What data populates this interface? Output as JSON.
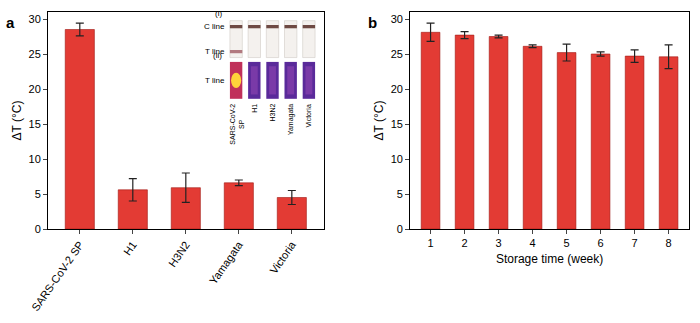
{
  "chart_data": [
    {
      "type": "bar",
      "panel_label": "a",
      "y_label": "ΔT (°C)",
      "categories": [
        "SARS-CoV-2 SP",
        "H1",
        "H3N2",
        "Yamagata",
        "Victoria"
      ],
      "values": [
        28.5,
        5.6,
        5.9,
        6.6,
        4.5
      ],
      "errors": [
        0.9,
        1.6,
        2.1,
        0.4,
        1.0
      ],
      "color": "#e33b34",
      "ylim": [
        0,
        31
      ],
      "yticks": [
        0,
        5,
        10,
        15,
        20,
        25,
        30
      ],
      "grid": false,
      "annotations": [
        {
          "text": "(i)"
        },
        {
          "text": "C line"
        },
        {
          "text": "T line"
        },
        {
          "text": "(ii)"
        },
        {
          "text": "T line"
        }
      ]
    },
    {
      "type": "bar",
      "panel_label": "b",
      "x_label": "Storage time (week)",
      "y_label": "ΔT (°C)",
      "x": [
        1,
        2,
        3,
        4,
        5,
        6,
        7,
        8
      ],
      "values": [
        28.1,
        27.7,
        27.5,
        26.1,
        25.2,
        25.0,
        24.7,
        24.6
      ],
      "errors": [
        1.3,
        0.5,
        0.2,
        0.2,
        1.2,
        0.3,
        0.9,
        1.7
      ],
      "color": "#e33b34",
      "xlim": [
        0.4,
        8.6
      ],
      "xticks": [
        1,
        2,
        3,
        4,
        5,
        6,
        7,
        8
      ],
      "ylim": [
        0,
        31
      ],
      "yticks": [
        0,
        5,
        10,
        15,
        20,
        25,
        30
      ],
      "grid": false
    }
  ]
}
